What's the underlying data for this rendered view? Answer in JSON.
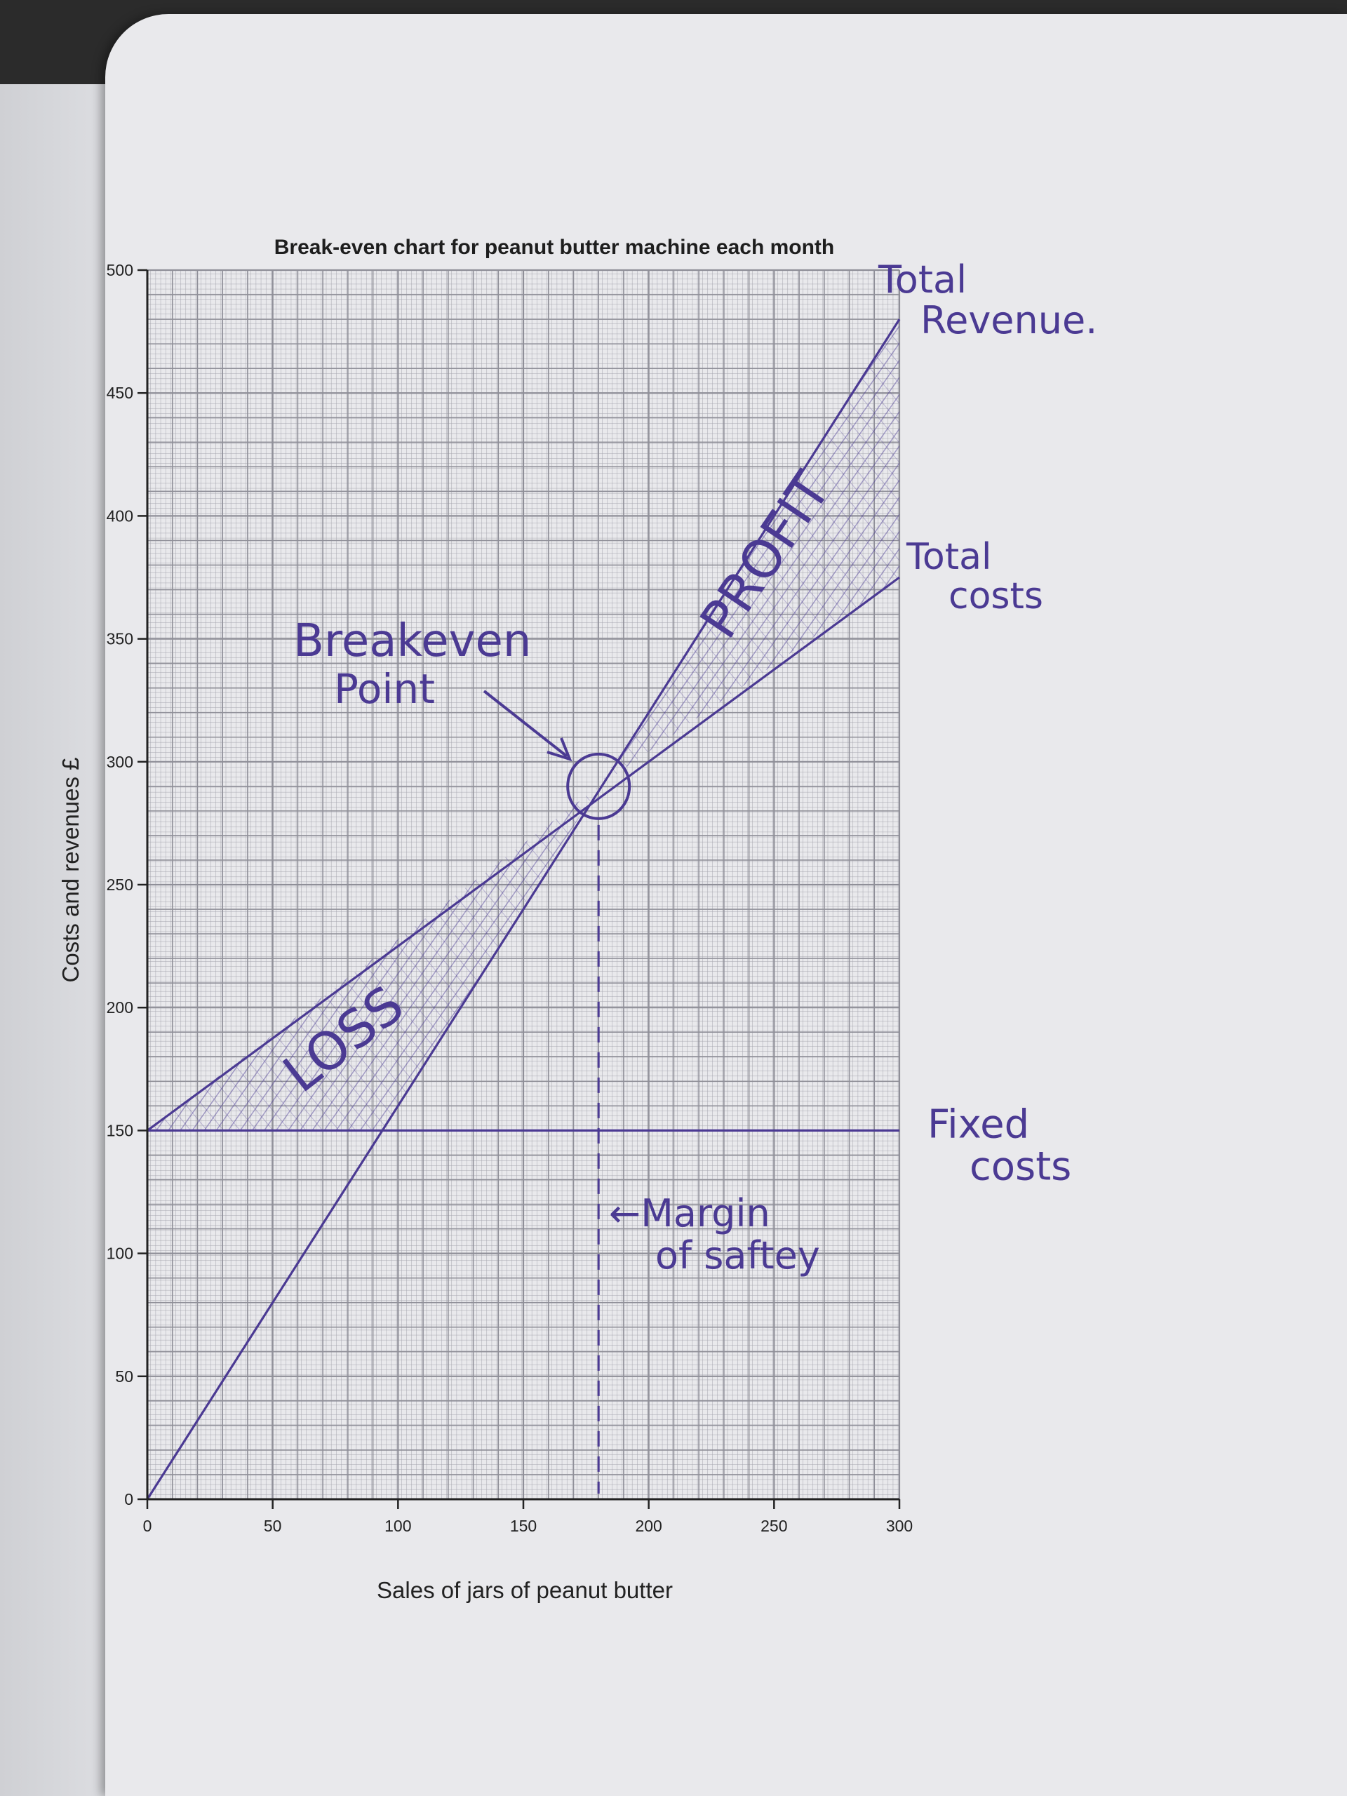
{
  "chart_data": {
    "type": "line",
    "title": "Break-even chart for peanut butter machine each month",
    "xlabel": "Sales of jars of peanut butter",
    "ylabel": "Costs and revenues £",
    "xlim": [
      0,
      300
    ],
    "ylim": [
      0,
      500
    ],
    "x_ticks": [
      "0",
      "50",
      "100",
      "150",
      "200",
      "250",
      "300"
    ],
    "y_ticks": [
      "0",
      "50",
      "100",
      "150",
      "200",
      "250",
      "300",
      "350",
      "400",
      "450",
      "500"
    ],
    "grid": true,
    "series": [
      {
        "name": "Total Revenue.",
        "x": [
          0,
          300
        ],
        "y": [
          0,
          480
        ]
      },
      {
        "name": "Total costs",
        "x": [
          0,
          300
        ],
        "y": [
          150,
          375
        ]
      },
      {
        "name": "Fixed costs",
        "x": [
          0,
          300
        ],
        "y": [
          150,
          150
        ]
      }
    ],
    "annotations": {
      "breakeven_label": [
        "Breakeven",
        "Point"
      ],
      "breakeven_point": {
        "x": 180,
        "y": 290
      },
      "margin_label": [
        "←Margin",
        "of saftey"
      ],
      "loss_label": "LOSS",
      "profit_label": "PROFIT"
    }
  },
  "colors": {
    "ink": "#4b3a93",
    "grid": "#8f8f98",
    "page": "#e9e9ec"
  }
}
